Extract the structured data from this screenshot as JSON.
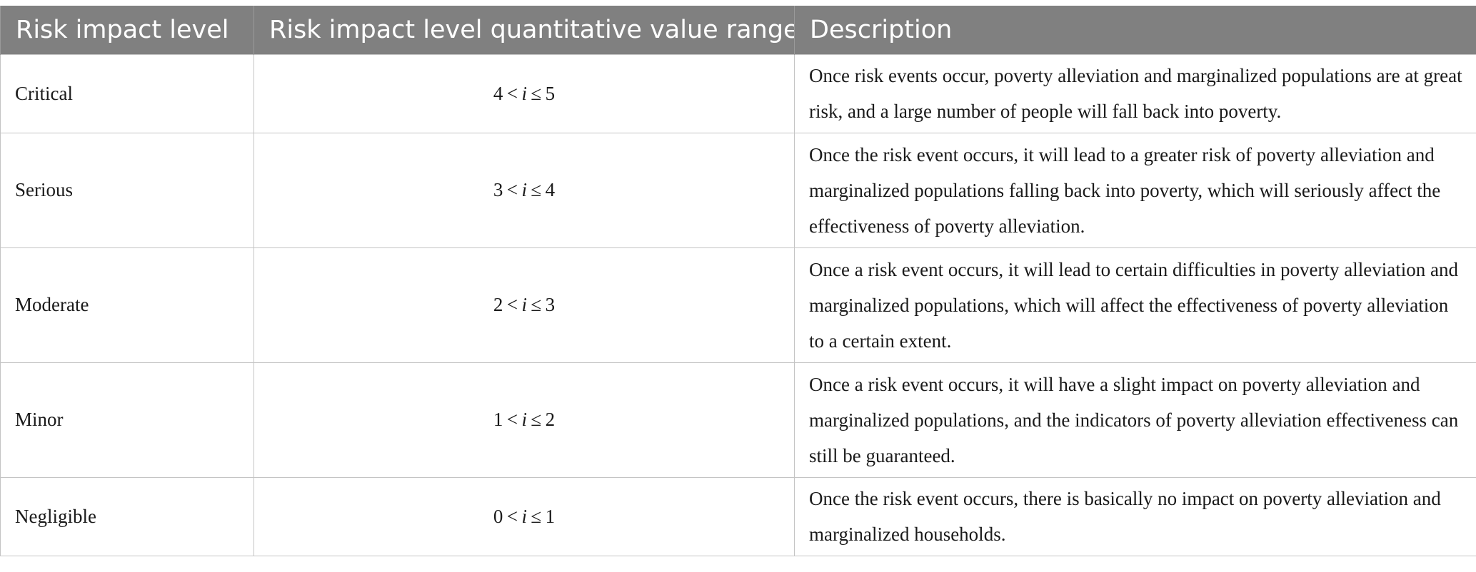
{
  "table": {
    "headers": [
      "Risk impact level",
      "Risk impact level quantitative value range",
      "Description"
    ],
    "rows": [
      {
        "level": "Critical",
        "range": {
          "low": "4",
          "op1": "<",
          "var": "i",
          "op2": "≤",
          "high": "5"
        },
        "description": "Once risk events occur, poverty alleviation and marginalized populations are at great risk, and a large number of people will fall back into poverty."
      },
      {
        "level": "Serious",
        "range": {
          "low": "3",
          "op1": "<",
          "var": "i",
          "op2": "≤",
          "high": "4"
        },
        "description": "Once the risk event occurs, it will lead to a greater risk of poverty alleviation and marginalized populations falling back into poverty, which will seriously affect the effectiveness of poverty alleviation."
      },
      {
        "level": "Moderate",
        "range": {
          "low": "2",
          "op1": "<",
          "var": "i",
          "op2": "≤",
          "high": "3"
        },
        "description": "Once a risk event occurs, it will lead to certain difficulties in poverty alleviation and marginalized populations, which will affect the effectiveness of poverty alleviation to a certain extent."
      },
      {
        "level": "Minor",
        "range": {
          "low": "1",
          "op1": "<",
          "var": "i",
          "op2": "≤",
          "high": "2"
        },
        "description": "Once a risk event occurs, it will have a slight impact on poverty alleviation and marginalized populations, and the indicators of poverty alleviation effectiveness can still be guaranteed."
      },
      {
        "level": "Negligible",
        "range": {
          "low": "0",
          "op1": "<",
          "var": "i",
          "op2": "≤",
          "high": "1"
        },
        "description": "Once the risk event occurs, there is basically no impact on poverty alleviation and marginalized households."
      }
    ]
  }
}
